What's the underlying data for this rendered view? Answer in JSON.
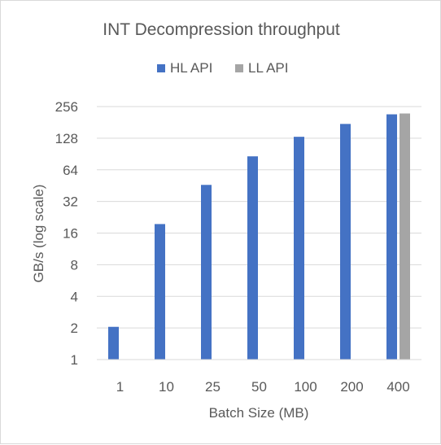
{
  "chart_data": {
    "type": "bar",
    "title": "INT Decompression throughput",
    "xlabel": "Batch Size (MB)",
    "ylabel": "GB/s (log scale)",
    "y_scale": "log2",
    "ylim": [
      1,
      256
    ],
    "y_ticks": [
      "1",
      "2",
      "4",
      "8",
      "16",
      "32",
      "64",
      "128",
      "256"
    ],
    "categories": [
      "1",
      "10",
      "25",
      "50",
      "100",
      "200",
      "400"
    ],
    "series": [
      {
        "name": "HL API",
        "color": "#4472c4",
        "values": [
          2.05,
          19.5,
          46,
          86,
          132,
          175,
          216
        ]
      },
      {
        "name": "LL API",
        "color": "#a5a5a5",
        "values": [
          null,
          null,
          null,
          null,
          null,
          null,
          220
        ]
      }
    ],
    "legend_position": "top",
    "grid": true,
    "gridline_color": "#d9d9d9"
  }
}
